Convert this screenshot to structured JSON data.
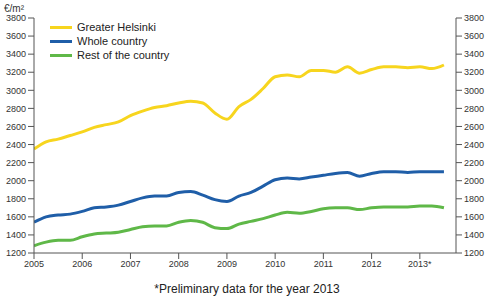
{
  "chart_data": {
    "type": "line",
    "y_label": "€/m²",
    "annotation": "*Preliminary data for the year 2013",
    "x": [
      2005,
      2005.25,
      2005.5,
      2005.75,
      2006,
      2006.25,
      2006.5,
      2006.75,
      2007,
      2007.25,
      2007.5,
      2007.75,
      2008,
      2008.25,
      2008.5,
      2008.75,
      2009,
      2009.25,
      2009.5,
      2009.75,
      2010,
      2010.25,
      2010.5,
      2010.75,
      2011,
      2011.25,
      2011.5,
      2011.75,
      2012,
      2012.25,
      2012.5,
      2012.75,
      2013,
      2013.25,
      2013.5
    ],
    "series": [
      {
        "name": "Greater Helsinki",
        "color": "#f7d51e",
        "values": [
          2350,
          2430,
          2460,
          2500,
          2540,
          2590,
          2620,
          2650,
          2720,
          2770,
          2810,
          2830,
          2860,
          2880,
          2860,
          2750,
          2680,
          2820,
          2900,
          3020,
          3150,
          3170,
          3150,
          3220,
          3220,
          3200,
          3260,
          3190,
          3230,
          3260,
          3260,
          3250,
          3260,
          3240,
          3280
        ]
      },
      {
        "name": "Whole country",
        "color": "#1f5ea8",
        "values": [
          1540,
          1600,
          1620,
          1630,
          1660,
          1700,
          1710,
          1730,
          1770,
          1810,
          1830,
          1830,
          1870,
          1880,
          1840,
          1790,
          1770,
          1830,
          1870,
          1940,
          2010,
          2030,
          2020,
          2040,
          2060,
          2080,
          2090,
          2050,
          2080,
          2100,
          2100,
          2090,
          2100,
          2100,
          2100
        ]
      },
      {
        "name": "Rest of the country",
        "color": "#5fb848",
        "values": [
          1280,
          1320,
          1340,
          1340,
          1380,
          1410,
          1420,
          1430,
          1460,
          1490,
          1500,
          1500,
          1540,
          1560,
          1540,
          1480,
          1470,
          1520,
          1550,
          1580,
          1620,
          1650,
          1640,
          1660,
          1690,
          1700,
          1700,
          1680,
          1700,
          1710,
          1710,
          1710,
          1720,
          1720,
          1700
        ]
      }
    ],
    "xlim": [
      2005,
      2013.75
    ],
    "xticks": [
      2005,
      2006,
      2007,
      2008,
      2009,
      2010,
      2011,
      2012,
      {
        "value": 2013,
        "label": "2013*"
      }
    ],
    "ylim": [
      1200,
      3800
    ],
    "yticks": [
      1200,
      1400,
      1600,
      1800,
      2000,
      2200,
      2400,
      2600,
      2800,
      3000,
      3200,
      3400,
      3600,
      3800
    ],
    "y2lim": [
      1200,
      3800
    ],
    "y2ticks": [
      1200,
      1400,
      1600,
      1800,
      2000,
      2200,
      2400,
      2600,
      2800,
      3000,
      3200,
      3400,
      3600,
      3800
    ],
    "grid": false,
    "legend": "upper left"
  }
}
